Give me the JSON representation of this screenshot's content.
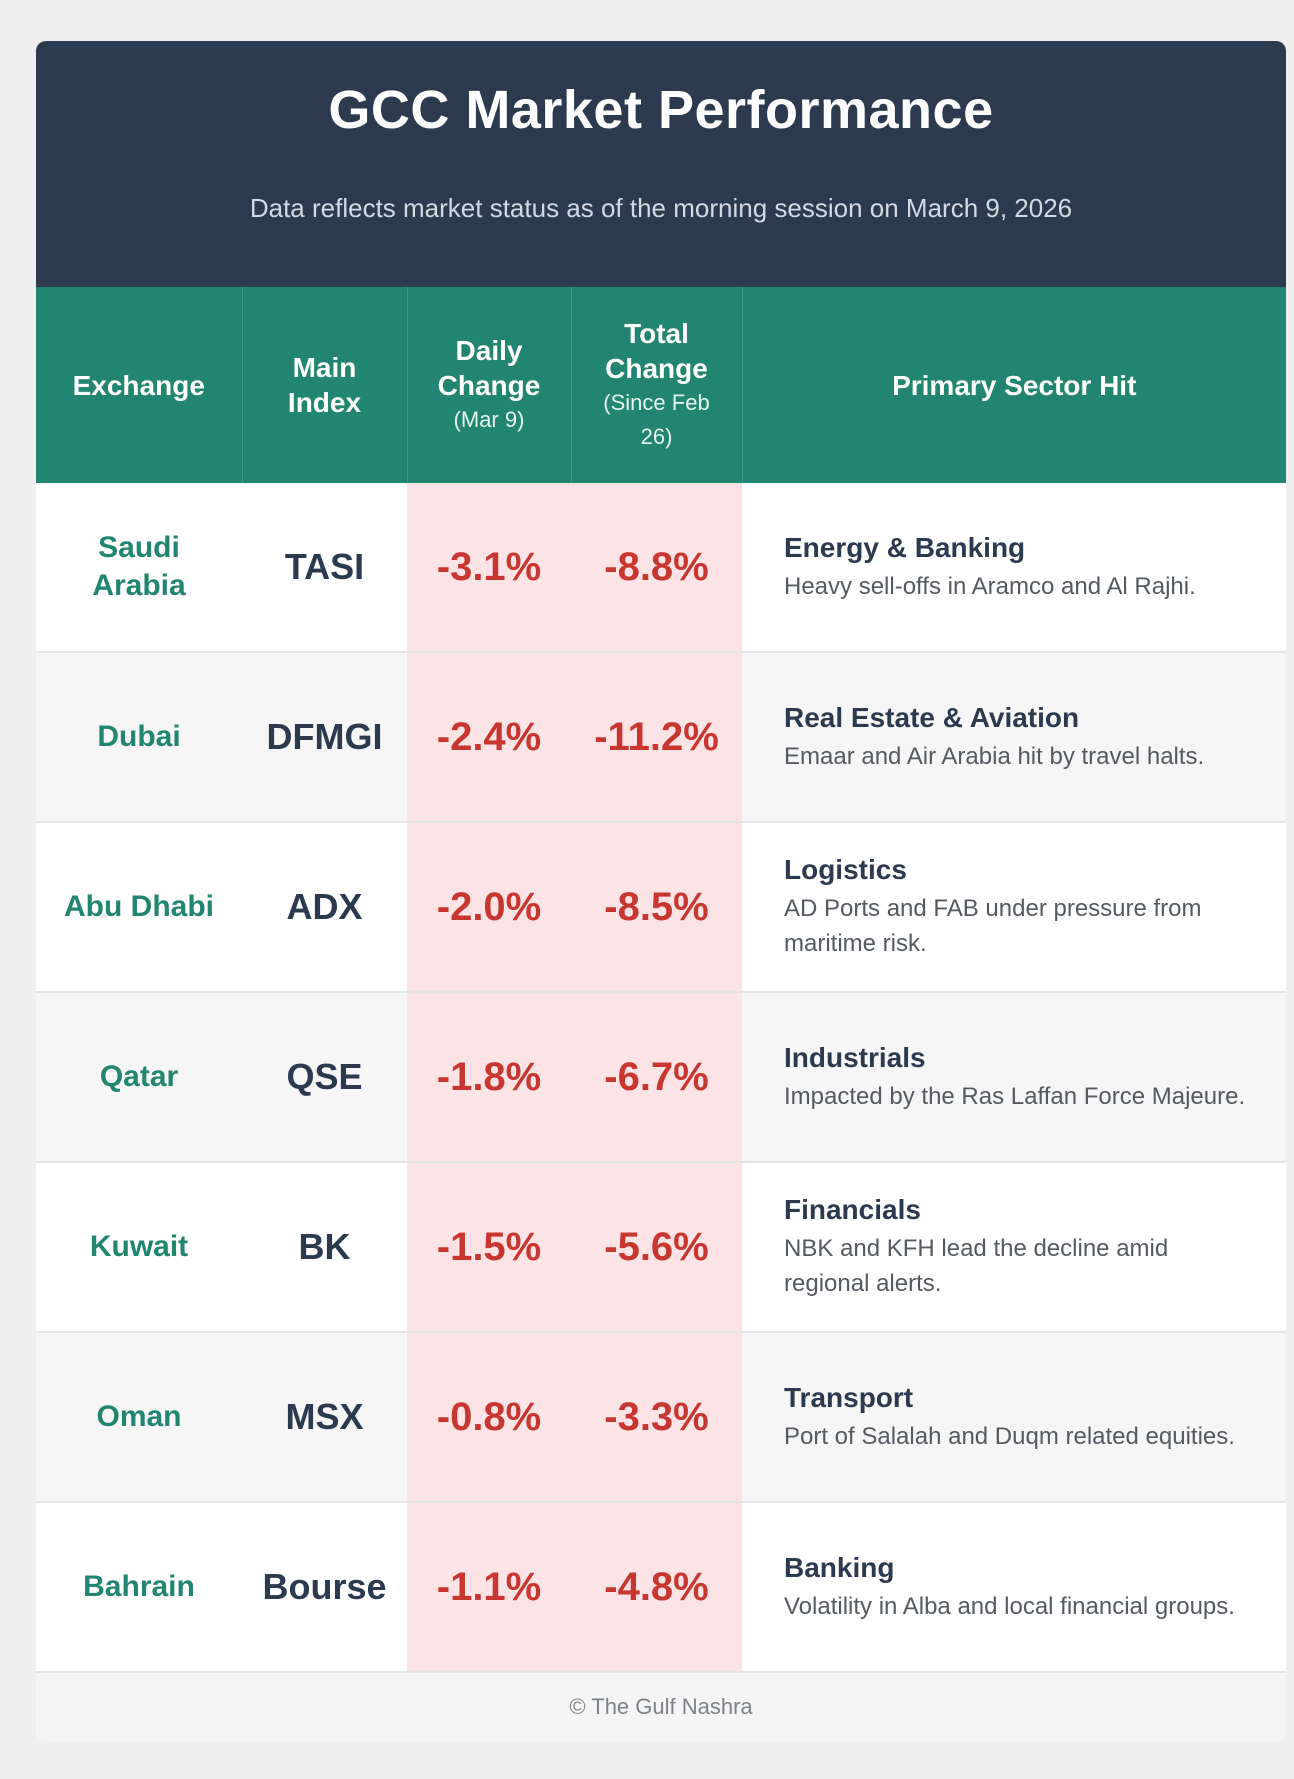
{
  "header": {
    "title": "GCC Market Performance",
    "subtitle": "Data reflects market status as of the morning session on March 9, 2026"
  },
  "chart_data": {
    "type": "table",
    "title": "GCC Market Performance",
    "columns": [
      {
        "label": "Exchange",
        "sub": ""
      },
      {
        "label": "Main Index",
        "sub": ""
      },
      {
        "label": "Daily Change",
        "sub": "(Mar 9)"
      },
      {
        "label": "Total Change",
        "sub": "(Since Feb 26)"
      },
      {
        "label": "Primary Sector Hit",
        "sub": ""
      }
    ],
    "rows": [
      {
        "exchange": "Saudi Arabia",
        "index": "TASI",
        "daily": "-3.1%",
        "total": "-8.8%",
        "sector": "Energy & Banking",
        "detail": "Heavy sell-offs in Aramco and Al Rajhi."
      },
      {
        "exchange": "Dubai",
        "index": "DFMGI",
        "daily": "-2.4%",
        "total": "-11.2%",
        "sector": "Real Estate & Aviation",
        "detail": "Emaar and Air Arabia hit by travel halts."
      },
      {
        "exchange": "Abu Dhabi",
        "index": "ADX",
        "daily": "-2.0%",
        "total": "-8.5%",
        "sector": "Logistics",
        "detail": "AD Ports and FAB under pressure from maritime risk."
      },
      {
        "exchange": "Qatar",
        "index": "QSE",
        "daily": "-1.8%",
        "total": "-6.7%",
        "sector": "Industrials",
        "detail": "Impacted by the Ras Laffan Force Majeure."
      },
      {
        "exchange": "Kuwait",
        "index": "BK",
        "daily": "-1.5%",
        "total": "-5.6%",
        "sector": "Financials",
        "detail": "NBK and KFH lead the decline amid regional alerts."
      },
      {
        "exchange": "Oman",
        "index": "MSX",
        "daily": "-0.8%",
        "total": "-3.3%",
        "sector": "Transport",
        "detail": "Port of Salalah and Duqm related equities."
      },
      {
        "exchange": "Bahrain",
        "index": "Bourse",
        "daily": "-1.1%",
        "total": "-4.8%",
        "sector": "Banking",
        "detail": "Volatility in Alba and local financial groups."
      }
    ]
  },
  "footer": {
    "credit": "© The Gulf Nashra"
  },
  "colors": {
    "header_bg": "#2c3a50",
    "table_header_bg": "#228571",
    "negative": "#c8372f",
    "negative_bg": "#fce4e6",
    "exchange_text": "#228571"
  }
}
